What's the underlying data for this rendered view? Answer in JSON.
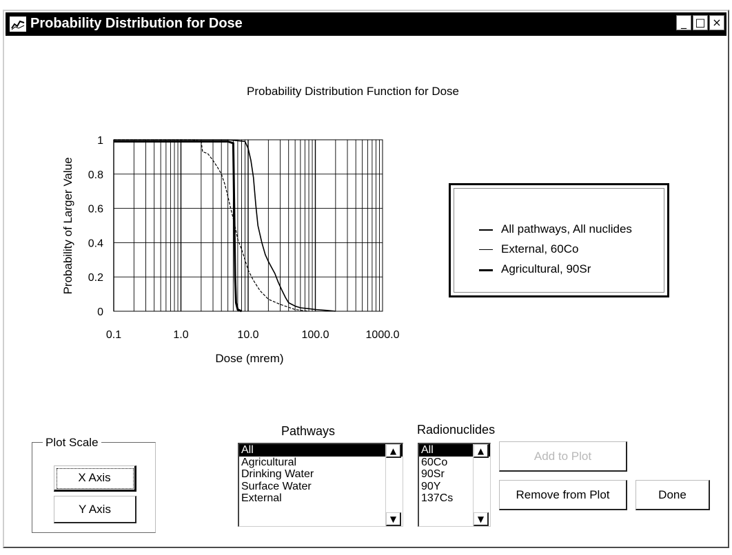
{
  "window": {
    "title": "Probability Distribution for Dose",
    "minimize_glyph": "_",
    "maximize_glyph": "□",
    "close_glyph": "×"
  },
  "chart_data": {
    "type": "line",
    "title": "Probability Distribution Function for Dose",
    "xlabel": "Dose (mrem)",
    "ylabel": "Probability of Larger Value",
    "x_scale": "log",
    "xlim": [
      0.1,
      1000
    ],
    "ylim": [
      0,
      1
    ],
    "x_ticks": [
      0.1,
      1,
      10,
      100,
      1000
    ],
    "x_tick_labels": [
      "0.1",
      "1.0",
      "10.0",
      "100.0",
      "1000.0"
    ],
    "y_ticks": [
      0,
      0.2,
      0.4,
      0.6,
      0.8,
      1
    ],
    "y_tick_labels": [
      "0",
      "0.2",
      "0.4",
      "0.6",
      "0.8",
      "1"
    ],
    "grid": true,
    "legend_position": "right",
    "series": [
      {
        "name": "All pathways, All nuclides",
        "x": [
          0.1,
          5,
          9,
          10,
          11,
          12,
          13,
          14,
          16,
          18,
          20,
          22,
          25,
          28,
          32,
          36,
          40,
          50,
          60,
          80,
          100,
          150,
          200
        ],
        "y": [
          1,
          1,
          0.99,
          0.95,
          0.88,
          0.78,
          0.62,
          0.5,
          0.4,
          0.33,
          0.29,
          0.26,
          0.22,
          0.17,
          0.12,
          0.08,
          0.05,
          0.03,
          0.02,
          0.015,
          0.01,
          0.005,
          0
        ]
      },
      {
        "name": "External, 60Co",
        "x": [
          0.1,
          1.5,
          2,
          2.1,
          2.5,
          3,
          3.5,
          4,
          4.5,
          5,
          5.5,
          6,
          6.5,
          7,
          8,
          9,
          10,
          12,
          15,
          20,
          30,
          50,
          80
        ],
        "y": [
          1,
          1,
          0.99,
          0.93,
          0.92,
          0.88,
          0.84,
          0.8,
          0.74,
          0.67,
          0.6,
          0.54,
          0.48,
          0.42,
          0.36,
          0.3,
          0.24,
          0.18,
          0.12,
          0.07,
          0.04,
          0.01,
          0
        ]
      },
      {
        "name": "Agricultural, 90Sr",
        "x": [
          0.1,
          5,
          6,
          6.2,
          6.4,
          6.6,
          7,
          8
        ],
        "y": [
          0.99,
          0.99,
          0.98,
          0.6,
          0.2,
          0.05,
          0.01,
          0
        ]
      }
    ]
  },
  "plot_scale": {
    "label": "Plot Scale",
    "x_axis_button": "X Axis",
    "y_axis_button": "Y Axis"
  },
  "pathways": {
    "label": "Pathways",
    "items": [
      "All",
      "Agricultural",
      "Drinking Water",
      "Surface Water",
      "External"
    ],
    "selected": "All"
  },
  "radionuclides": {
    "label": "Radionuclides",
    "items": [
      "All",
      "60Co",
      "90Sr",
      "90Y",
      "137Cs"
    ],
    "selected": "All"
  },
  "buttons": {
    "add_to_plot": "Add to Plot",
    "remove_from_plot": "Remove from Plot",
    "done": "Done"
  },
  "icons": {
    "app": "chart-app-icon",
    "scroll_up": "▲",
    "scroll_down": "▼"
  }
}
